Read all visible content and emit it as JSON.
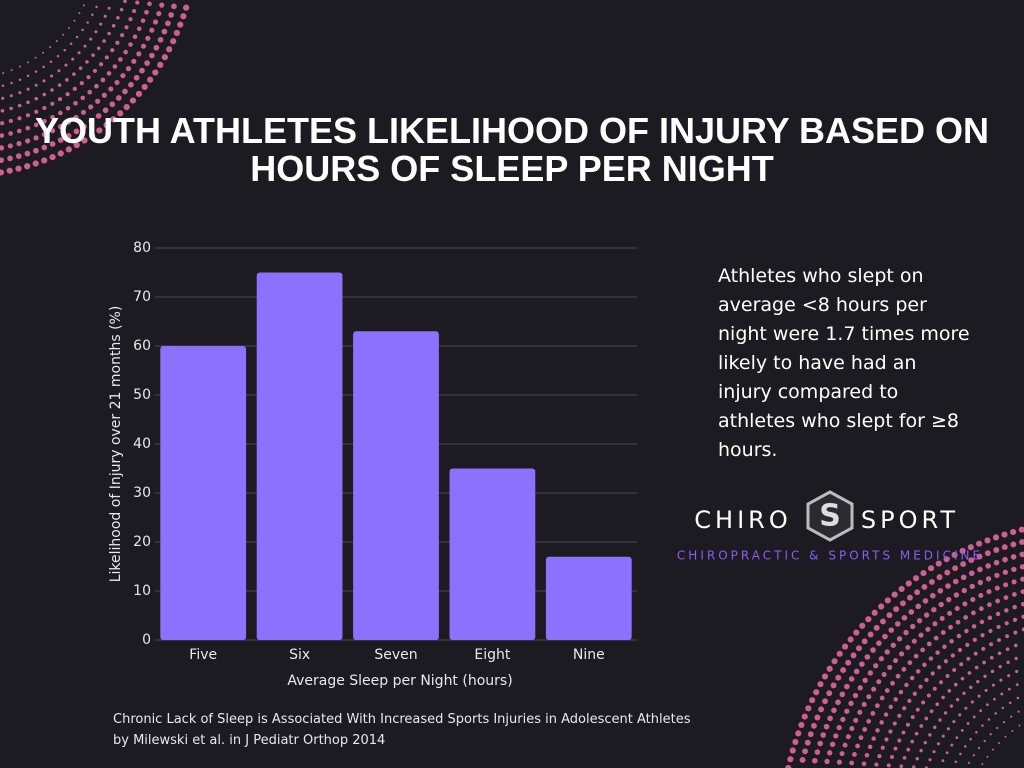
{
  "chart_data": {
    "type": "bar",
    "title": "YOUTH ATHLETES LIKELIHOOD OF INJURY BASED ON HOURS OF SLEEP PER NIGHT",
    "x_label": "Average Sleep per Night (hours)",
    "y_label": "Likelihood of Injury over 21 months (%)",
    "categories": [
      "Five",
      "Six",
      "Seven",
      "Eight",
      "Nine"
    ],
    "values": [
      60,
      75,
      63,
      35,
      17
    ],
    "color": "#8b72fd",
    "ylim": [
      0,
      80
    ],
    "yticks": [
      0,
      10,
      20,
      30,
      40,
      50,
      60,
      70,
      80
    ],
    "grid": true
  },
  "side_note": "Athletes who slept on average <8 hours per night were 1.7 times more likely to have had an injury compared to athletes who slept for ≥8 hours.",
  "logo": {
    "left": "CHIRO",
    "right": "SPORT",
    "tagline": "CHIROPRACTIC & SPORTS MEDICINE"
  },
  "source": [
    "Chronic Lack of Sleep is Associated With Increased Sports Injuries in Adolescent Athletes",
    "by Milewski et al. in J Pediatr Orthop 2014"
  ]
}
